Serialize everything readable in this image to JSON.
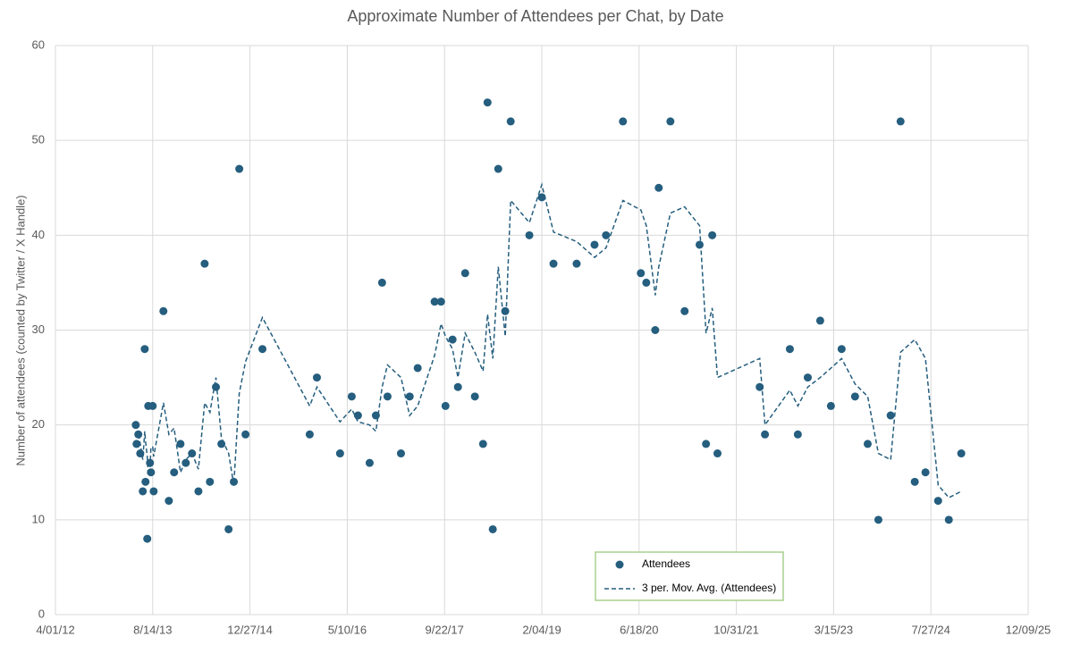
{
  "chart_data": {
    "type": "scatter",
    "title": "Approximate Number of Attendees per Chat, by Date",
    "y_label": "Number of attendees (counted by Twitter / X Handle)",
    "x": [
      "2013-05-19",
      "2013-05-23",
      "2013-06-01",
      "2013-06-11",
      "2013-06-24",
      "2013-07-04",
      "2013-07-08",
      "2013-07-17",
      "2013-07-22",
      "2013-07-31",
      "2013-08-05",
      "2013-08-14",
      "2013-08-19",
      "2013-10-08",
      "2013-11-05",
      "2013-12-02",
      "2014-01-04",
      "2014-01-31",
      "2014-03-04",
      "2014-04-06",
      "2014-05-08",
      "2014-06-04",
      "2014-07-05",
      "2014-08-02",
      "2014-09-08",
      "2014-10-05",
      "2014-11-02",
      "2014-12-04",
      "2015-03-01",
      "2015-10-30",
      "2015-12-06",
      "2016-04-03",
      "2016-06-02",
      "2016-07-04",
      "2016-09-02",
      "2016-10-04",
      "2016-11-05",
      "2016-12-03",
      "2017-02-10",
      "2017-03-27",
      "2017-05-07",
      "2017-08-02",
      "2017-09-04",
      "2017-09-27",
      "2017-11-02",
      "2017-11-30",
      "2018-01-06",
      "2018-02-25",
      "2018-04-08",
      "2018-05-01",
      "2018-05-28",
      "2018-06-25",
      "2018-07-31",
      "2018-08-28",
      "2018-12-02",
      "2019-02-04",
      "2019-04-05",
      "2019-08-02",
      "2019-11-02",
      "2019-12-31",
      "2020-03-27",
      "2020-06-27",
      "2020-07-25",
      "2020-09-09",
      "2020-09-27",
      "2020-11-26",
      "2021-02-07",
      "2021-04-25",
      "2021-05-28",
      "2021-06-29",
      "2021-07-26",
      "2022-02-28",
      "2022-03-27",
      "2022-08-02",
      "2022-09-12",
      "2022-11-02",
      "2023-01-05",
      "2023-03-01",
      "2023-04-25",
      "2023-07-03",
      "2023-09-06",
      "2023-10-31",
      "2024-01-02",
      "2024-02-22",
      "2024-05-05",
      "2024-06-29",
      "2024-09-02",
      "2024-10-27",
      "2024-12-30"
    ],
    "series": [
      {
        "name": "Attendees",
        "color": "#255e7e",
        "style": "markers",
        "values": [
          20,
          18,
          19,
          17,
          13,
          28,
          14,
          8,
          22,
          16,
          15,
          22,
          13,
          32,
          12,
          15,
          18,
          16,
          17,
          13,
          37,
          14,
          24,
          18,
          9,
          14,
          47,
          19,
          28,
          19,
          25,
          17,
          23,
          21,
          16,
          21,
          35,
          23,
          17,
          23,
          26,
          33,
          33,
          22,
          29,
          24,
          36,
          23,
          18,
          54,
          9,
          47,
          32,
          52,
          40,
          44,
          37,
          37,
          39,
          40,
          52,
          36,
          35,
          30,
          45,
          52,
          32,
          39,
          18,
          40,
          17,
          24,
          19,
          28,
          19,
          25,
          31,
          22,
          28,
          23,
          18,
          10,
          21,
          52,
          14,
          15,
          12,
          10,
          17
        ]
      },
      {
        "name": "3 per. Mov. Avg. (Attendees)",
        "color": "#255e7e",
        "style": "dashed",
        "values": [
          null,
          null,
          19,
          18,
          16.33,
          19.33,
          18.33,
          16.67,
          14.67,
          15.33,
          17.67,
          17.67,
          16.67,
          22.33,
          19,
          19.67,
          15,
          16.33,
          17,
          15.33,
          22.33,
          21.33,
          25,
          18.67,
          17,
          13.67,
          23.33,
          26.67,
          31.33,
          22,
          24,
          20.33,
          21.67,
          20.33,
          20,
          19.33,
          24,
          26.33,
          25,
          21,
          22,
          27.33,
          30.67,
          29.33,
          28,
          25,
          29.67,
          27.67,
          25.67,
          31.67,
          27,
          36.67,
          29.33,
          43.67,
          41.33,
          45.33,
          40.33,
          39.33,
          37.67,
          38.67,
          43.67,
          42.67,
          41,
          33.67,
          36.67,
          42.33,
          43,
          41,
          29.67,
          32.33,
          25,
          27,
          20,
          23.67,
          22,
          24,
          25,
          26,
          27,
          24.33,
          23,
          17,
          16.33,
          27.67,
          29,
          27,
          13.67,
          12.33,
          13
        ]
      }
    ],
    "xlim": [
      "2012-04-01",
      "2025-12-09"
    ],
    "xticks": [
      {
        "value": "2012-04-01",
        "label": "4/01/12"
      },
      {
        "value": "2013-08-14",
        "label": "8/14/13"
      },
      {
        "value": "2014-12-27",
        "label": "12/27/14"
      },
      {
        "value": "2016-05-10",
        "label": "5/10/16"
      },
      {
        "value": "2017-09-22",
        "label": "9/22/17"
      },
      {
        "value": "2019-02-04",
        "label": "2/04/19"
      },
      {
        "value": "2020-06-18",
        "label": "6/18/20"
      },
      {
        "value": "2021-10-31",
        "label": "10/31/21"
      },
      {
        "value": "2023-03-15",
        "label": "3/15/23"
      },
      {
        "value": "2024-07-27",
        "label": "7/27/24"
      },
      {
        "value": "2025-12-09",
        "label": "12/09/25"
      }
    ],
    "ylim": [
      0,
      60
    ],
    "yticks": [
      0,
      10,
      20,
      30,
      40,
      50,
      60
    ],
    "grid": true,
    "legend": "bottom"
  }
}
